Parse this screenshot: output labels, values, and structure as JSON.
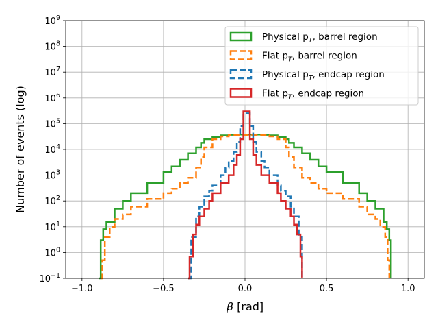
{
  "chart_data": {
    "type": "histogram-step",
    "title": "",
    "xlabel_symbol": "β",
    "xlabel_unit": " [rad]",
    "ylabel": "Number of events (log)",
    "xlim": [
      -1.1,
      1.1
    ],
    "ylim": [
      0.1,
      1000000000
    ],
    "yscale": "log",
    "grid": true,
    "legend_position": "top-right",
    "xticks": [
      {
        "value": -1.0,
        "label": "−1.0"
      },
      {
        "value": -0.5,
        "label": "−0.5"
      },
      {
        "value": 0.0,
        "label": "0.0"
      },
      {
        "value": 0.5,
        "label": "0.5"
      },
      {
        "value": 1.0,
        "label": "1.0"
      }
    ],
    "yticks": [
      {
        "exp": -1,
        "base": "10",
        "sup": "−1"
      },
      {
        "exp": 0,
        "base": "10",
        "sup": "0"
      },
      {
        "exp": 1,
        "base": "10",
        "sup": "1"
      },
      {
        "exp": 2,
        "base": "10",
        "sup": "2"
      },
      {
        "exp": 3,
        "base": "10",
        "sup": "3"
      },
      {
        "exp": 4,
        "base": "10",
        "sup": "4"
      },
      {
        "exp": 5,
        "base": "10",
        "sup": "5"
      },
      {
        "exp": 6,
        "base": "10",
        "sup": "6"
      },
      {
        "exp": 7,
        "base": "10",
        "sup": "7"
      },
      {
        "exp": 8,
        "base": "10",
        "sup": "8"
      },
      {
        "exp": 9,
        "base": "10",
        "sup": "9"
      }
    ],
    "series": [
      {
        "name_prefix": "Physical p",
        "name_sub": "T",
        "name_suffix": ", barrel region",
        "color": "#2ca02c",
        "dashed": false,
        "x": [
          -0.895,
          -0.885,
          -0.87,
          -0.85,
          -0.8,
          -0.75,
          -0.7,
          -0.6,
          -0.5,
          -0.45,
          -0.4,
          -0.35,
          -0.3,
          -0.27,
          -0.25,
          -0.2,
          -0.15,
          -0.1,
          -0.05,
          0.0,
          0.05,
          0.1,
          0.15,
          0.2,
          0.25,
          0.27,
          0.3,
          0.35,
          0.4,
          0.45,
          0.5,
          0.6,
          0.7,
          0.75,
          0.8,
          0.85,
          0.87,
          0.885,
          0.895
        ],
        "y": [
          0.1,
          3,
          8,
          15,
          50,
          100,
          200,
          500,
          1300,
          2200,
          4000,
          7000,
          12000,
          18000,
          25000,
          30000,
          35000,
          37000,
          38000,
          38000,
          38000,
          37000,
          35000,
          30000,
          25000,
          18000,
          12000,
          7000,
          4000,
          2200,
          1300,
          500,
          200,
          100,
          50,
          15,
          8,
          3,
          0.1
        ]
      },
      {
        "name_prefix": "Flat p",
        "name_sub": "T",
        "name_suffix": ", barrel region",
        "color": "#ff7f0e",
        "dashed": true,
        "x": [
          -0.885,
          -0.875,
          -0.86,
          -0.83,
          -0.8,
          -0.75,
          -0.7,
          -0.6,
          -0.5,
          -0.45,
          -0.4,
          -0.35,
          -0.3,
          -0.27,
          -0.25,
          -0.2,
          -0.15,
          -0.1,
          0.0,
          0.1,
          0.15,
          0.2,
          0.25,
          0.27,
          0.3,
          0.35,
          0.4,
          0.45,
          0.5,
          0.6,
          0.7,
          0.75,
          0.8,
          0.83,
          0.86,
          0.875,
          0.885
        ],
        "y": [
          0.1,
          0.5,
          4,
          10,
          20,
          30,
          60,
          120,
          200,
          300,
          500,
          800,
          2000,
          5000,
          12000,
          25000,
          32000,
          36000,
          36000,
          36000,
          32000,
          25000,
          12000,
          5000,
          2000,
          800,
          500,
          300,
          200,
          120,
          60,
          30,
          20,
          10,
          4,
          0.5,
          0.1
        ]
      },
      {
        "name_prefix": "Physical p",
        "name_sub": "T",
        "name_suffix": ", endcap region",
        "color": "#1f77b4",
        "dashed": true,
        "x": [
          -0.35,
          -0.33,
          -0.3,
          -0.28,
          -0.25,
          -0.22,
          -0.2,
          -0.15,
          -0.12,
          -0.1,
          -0.07,
          -0.05,
          -0.03,
          -0.01,
          0.01,
          0.03,
          0.05,
          0.07,
          0.1,
          0.12,
          0.15,
          0.2,
          0.22,
          0.25,
          0.28,
          0.3,
          0.33,
          0.35
        ],
        "y": [
          0.1,
          4,
          25,
          60,
          150,
          250,
          400,
          1000,
          2000,
          3500,
          8000,
          20000,
          80000,
          250000,
          250000,
          80000,
          20000,
          8000,
          3500,
          2000,
          1000,
          400,
          250,
          150,
          60,
          25,
          4,
          0.1
        ]
      },
      {
        "name_prefix": "Flat p",
        "name_sub": "T",
        "name_suffix": ", endcap region",
        "color": "#d62728",
        "dashed": false,
        "x": [
          -0.35,
          -0.34,
          -0.32,
          -0.3,
          -0.28,
          -0.25,
          -0.22,
          -0.2,
          -0.15,
          -0.1,
          -0.07,
          -0.05,
          -0.03,
          -0.01,
          0.01,
          0.03,
          0.05,
          0.07,
          0.1,
          0.15,
          0.2,
          0.22,
          0.25,
          0.28,
          0.3,
          0.32,
          0.34,
          0.35
        ],
        "y": [
          0.1,
          0.7,
          5,
          12,
          25,
          50,
          100,
          200,
          500,
          1000,
          2500,
          6000,
          25000,
          300000,
          300000,
          25000,
          6000,
          2500,
          1000,
          500,
          200,
          100,
          50,
          25,
          12,
          5,
          0.7,
          0.1
        ]
      }
    ]
  }
}
